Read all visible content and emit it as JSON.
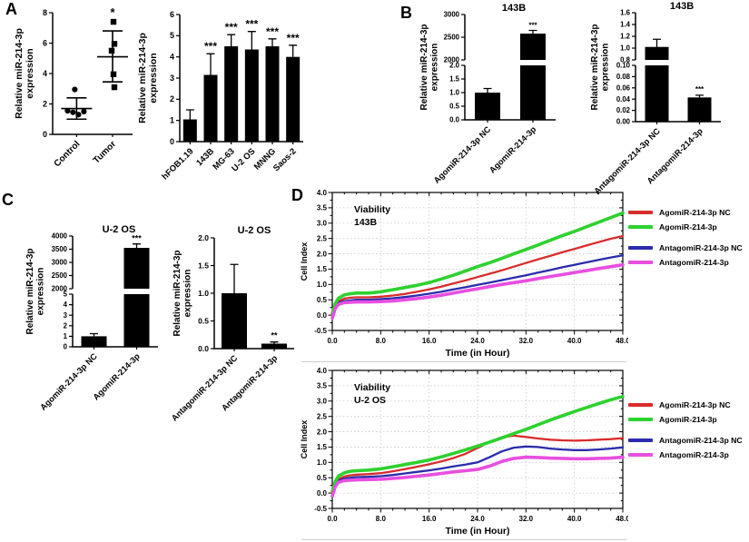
{
  "panels": {
    "A": "A",
    "B": "B",
    "C": "C",
    "D": "D"
  },
  "chart_data": [
    {
      "id": "a-scatter",
      "type": "scatter",
      "ylabel": [
        "Relative miR-214-3p",
        "expression"
      ],
      "ylim": [
        0,
        8
      ],
      "yticks": [
        0,
        2,
        4,
        6,
        8
      ],
      "ytick_labels": [
        "0",
        "2",
        "4",
        "6",
        "8"
      ],
      "groups": [
        {
          "name": "Control",
          "marker": "circle",
          "points": [
            [
              -10,
              1.55
            ],
            [
              -4,
              1.45
            ],
            [
              2,
              1.3
            ],
            [
              8,
              1.5
            ],
            [
              -2,
              2.95
            ]
          ],
          "mean": 1.7,
          "err_low": 1.0,
          "err_high": 2.4,
          "sig": ""
        },
        {
          "name": "Tumor",
          "marker": "square",
          "points": [
            [
              1,
              7.4
            ],
            [
              2,
              5.95
            ],
            [
              -1,
              5.5
            ],
            [
              1,
              3.95
            ],
            [
              2,
              3.1
            ]
          ],
          "mean": 5.1,
          "err_low": 3.45,
          "err_high": 6.8,
          "sig": "*"
        }
      ]
    },
    {
      "id": "a-bars",
      "type": "bar",
      "ylabel": [
        "Relative miR-214-3p",
        "expression"
      ],
      "ylim": [
        0,
        6
      ],
      "yticks": [
        0,
        1,
        2,
        3,
        4,
        5,
        6
      ],
      "ytick_labels": [
        "0",
        "1",
        "2",
        "3",
        "4",
        "5",
        "6"
      ],
      "categories": [
        "hFOB1.19",
        "143B",
        "MG-63",
        "U-2 OS",
        "MNNG",
        "Saos-2"
      ],
      "values": [
        1.05,
        3.15,
        4.5,
        4.35,
        4.5,
        4.0
      ],
      "errors": [
        0.45,
        1.0,
        0.55,
        0.85,
        0.35,
        0.55
      ],
      "sig": [
        "",
        "***",
        "***",
        "***",
        "***",
        "***"
      ]
    },
    {
      "id": "b-agomir",
      "type": "broken-bar",
      "title": "143B",
      "ylabel": [
        "Relative miR-214-3p",
        "expression"
      ],
      "upper": {
        "ylim": [
          2000,
          3000
        ],
        "yticks": [
          2000,
          2500,
          3000
        ],
        "ytick_labels": [
          "2000",
          "2500",
          "3000"
        ]
      },
      "lower": {
        "ylim": [
          0,
          2
        ],
        "yticks": [
          0,
          0.5,
          1,
          1.5,
          2
        ],
        "ytick_labels": [
          "0.0",
          "0.5",
          "1.0",
          "1.5",
          "2.0"
        ]
      },
      "categories": [
        "AgomiR-214-3p NC",
        "AgomiR-214-3p"
      ],
      "values": [
        1.0,
        2580
      ],
      "errors": [
        0.15,
        70
      ],
      "sig": [
        "",
        "***"
      ]
    },
    {
      "id": "b-antagomir",
      "type": "broken-bar",
      "title": "143B",
      "ylabel": [
        "Relative miR-214-3p",
        "expression"
      ],
      "upper": {
        "ylim": [
          0.8,
          1.6
        ],
        "yticks": [
          0.8,
          1.0,
          1.2,
          1.4,
          1.6
        ],
        "ytick_labels": [
          "0.8",
          "1.0",
          "1.2",
          "1.4",
          "1.6"
        ]
      },
      "lower": {
        "ylim": [
          0,
          0.1
        ],
        "yticks": [
          0,
          0.02,
          0.04,
          0.06,
          0.08,
          0.1
        ],
        "ytick_labels": [
          "0.00",
          "0.02",
          "0.04",
          "0.06",
          "0.08",
          "0.10"
        ]
      },
      "categories": [
        "AntagomiR-214-3p NC",
        "AntagomiR-214-3p"
      ],
      "values": [
        1.02,
        0.043
      ],
      "errors": [
        0.13,
        0.004
      ],
      "sig": [
        "",
        "***"
      ]
    },
    {
      "id": "c-agomir",
      "type": "broken-bar",
      "title": "U-2 OS",
      "ylabel": [
        "Relative miR-214-3p",
        "expression"
      ],
      "upper": {
        "ylim": [
          2000,
          4000
        ],
        "yticks": [
          2000,
          2500,
          3000,
          3500,
          4000
        ],
        "ytick_labels": [
          "2000",
          "2500",
          "3000",
          "3500",
          "4000"
        ]
      },
      "lower": {
        "ylim": [
          0,
          5
        ],
        "yticks": [
          0,
          1,
          2,
          3,
          4,
          5
        ],
        "ytick_labels": [
          "0",
          "1",
          "2",
          "3",
          "4",
          "5"
        ]
      },
      "categories": [
        "AgomiR-214-3p NC",
        "AgomiR-214-3p"
      ],
      "values": [
        1.0,
        3550
      ],
      "errors": [
        0.25,
        150
      ],
      "sig": [
        "",
        "***"
      ]
    },
    {
      "id": "c-antagomir",
      "type": "bar",
      "title": "U-2 OS",
      "ylabel": [
        "Relative miR-214-3p",
        "expression"
      ],
      "ylim": [
        0,
        2
      ],
      "yticks": [
        0,
        0.5,
        1,
        1.5,
        2
      ],
      "ytick_labels": [
        "0.0",
        "0.5",
        "1.0",
        "1.5",
        "2.0"
      ],
      "categories": [
        "AntagomiR-214-3p NC",
        "AntagomiR-214-3p"
      ],
      "values": [
        1.0,
        0.09
      ],
      "errors": [
        0.52,
        0.03
      ],
      "sig": [
        "",
        "**"
      ]
    },
    {
      "id": "d-143b",
      "type": "line",
      "annotation": [
        "Viability",
        "143B"
      ],
      "xlabel": "Time (in Hour)",
      "ylabel": "Cell Index",
      "xlim": [
        0,
        48
      ],
      "ylim": [
        -0.5,
        4.0
      ],
      "xticks": [
        0,
        8,
        16,
        24,
        32,
        40,
        48
      ],
      "xtick_labels": [
        "0.0",
        "8.0",
        "16.0",
        "24.0",
        "32.0",
        "40.0",
        "48.0"
      ],
      "yticks": [
        4.0,
        3.5,
        3.0,
        2.5,
        2.0,
        1.5,
        1.0,
        0.5,
        0.0,
        -0.5
      ],
      "ytick_labels": [
        "4.0",
        "3.5",
        "3.0",
        "2.5",
        "2.0",
        "1.5",
        "1.0",
        "0.5",
        "0.0",
        "-0.5"
      ],
      "x": [
        0,
        0.5,
        1,
        2,
        3,
        4,
        6,
        8,
        10,
        12,
        14,
        16,
        18,
        20,
        22,
        24,
        26,
        28,
        30,
        32,
        34,
        36,
        38,
        40,
        42,
        44,
        46,
        48
      ],
      "series": [
        {
          "name": "AgomiR-214-3p NC",
          "color": "#d82c2c",
          "values": [
            0.0,
            0.3,
            0.45,
            0.54,
            0.57,
            0.58,
            0.58,
            0.6,
            0.64,
            0.69,
            0.76,
            0.84,
            0.93,
            1.03,
            1.13,
            1.24,
            1.35,
            1.46,
            1.58,
            1.7,
            1.82,
            1.93,
            2.05,
            2.16,
            2.27,
            2.38,
            2.49,
            2.58
          ]
        },
        {
          "name": "AgomiR-214-3p",
          "color": "#2fd12f",
          "values": [
            0.05,
            0.38,
            0.55,
            0.66,
            0.7,
            0.72,
            0.72,
            0.76,
            0.83,
            0.9,
            0.97,
            1.06,
            1.18,
            1.3,
            1.44,
            1.58,
            1.71,
            1.85,
            2.0,
            2.14,
            2.29,
            2.44,
            2.59,
            2.73,
            2.88,
            3.03,
            3.18,
            3.33
          ]
        },
        {
          "name": "AntagomiR-214-3p NC",
          "color": "#2b2bad",
          "values": [
            -0.05,
            0.25,
            0.4,
            0.46,
            0.48,
            0.5,
            0.5,
            0.52,
            0.55,
            0.59,
            0.64,
            0.7,
            0.76,
            0.84,
            0.91,
            0.99,
            1.06,
            1.14,
            1.22,
            1.3,
            1.39,
            1.47,
            1.56,
            1.64,
            1.72,
            1.8,
            1.88,
            1.95
          ]
        },
        {
          "name": "AntagomiR-214-3p",
          "color": "#e84fe0",
          "values": [
            -0.1,
            0.22,
            0.35,
            0.41,
            0.42,
            0.43,
            0.43,
            0.44,
            0.46,
            0.5,
            0.54,
            0.59,
            0.65,
            0.72,
            0.79,
            0.86,
            0.93,
            1.0,
            1.06,
            1.12,
            1.19,
            1.26,
            1.32,
            1.39,
            1.45,
            1.52,
            1.58,
            1.64
          ]
        }
      ]
    },
    {
      "id": "d-u2os",
      "type": "line",
      "annotation": [
        "Viability",
        "U-2 OS"
      ],
      "xlabel": "Time (in Hour)",
      "ylabel": "Cell Index",
      "xlim": [
        0,
        48
      ],
      "ylim": [
        -0.5,
        4.0
      ],
      "xticks": [
        0,
        8,
        16,
        24,
        32,
        40,
        48
      ],
      "xtick_labels": [
        "0.0",
        "8.0",
        "16.0",
        "24.0",
        "32.0",
        "40.0",
        "48.0"
      ],
      "yticks": [
        4.0,
        3.5,
        3.0,
        2.5,
        2.0,
        1.5,
        1.0,
        0.5,
        0.0,
        -0.5
      ],
      "ytick_labels": [
        "4.0",
        "3.5",
        "3.0",
        "2.5",
        "2.0",
        "1.5",
        "1.0",
        "0.5",
        "0.0",
        "-0.5"
      ],
      "x": [
        0,
        0.5,
        1,
        2,
        3,
        4,
        6,
        8,
        10,
        12,
        14,
        16,
        18,
        20,
        22,
        24,
        26,
        28,
        30,
        32,
        34,
        36,
        38,
        40,
        42,
        44,
        46,
        48
      ],
      "series": [
        {
          "name": "AgomiR-214-3p NC",
          "color": "#d82c2c",
          "values": [
            0.0,
            0.3,
            0.45,
            0.54,
            0.58,
            0.6,
            0.62,
            0.65,
            0.71,
            0.78,
            0.86,
            0.94,
            1.03,
            1.14,
            1.28,
            1.47,
            1.67,
            1.82,
            1.87,
            1.83,
            1.78,
            1.74,
            1.72,
            1.71,
            1.72,
            1.74,
            1.76,
            1.79
          ]
        },
        {
          "name": "AgomiR-214-3p",
          "color": "#2fd12f",
          "values": [
            0.05,
            0.38,
            0.55,
            0.66,
            0.71,
            0.73,
            0.75,
            0.79,
            0.86,
            0.93,
            1.0,
            1.08,
            1.18,
            1.29,
            1.41,
            1.53,
            1.66,
            1.8,
            1.94,
            2.08,
            2.23,
            2.38,
            2.52,
            2.66,
            2.79,
            2.92,
            3.04,
            3.15
          ]
        },
        {
          "name": "AntagomiR-214-3p NC",
          "color": "#2b2bad",
          "values": [
            -0.05,
            0.25,
            0.4,
            0.47,
            0.5,
            0.52,
            0.53,
            0.55,
            0.59,
            0.64,
            0.69,
            0.74,
            0.8,
            0.87,
            0.93,
            1.0,
            1.17,
            1.36,
            1.48,
            1.52,
            1.5,
            1.45,
            1.42,
            1.4,
            1.4,
            1.42,
            1.45,
            1.49
          ]
        },
        {
          "name": "AntagomiR-214-3p",
          "color": "#e84fe0",
          "values": [
            -0.1,
            0.22,
            0.35,
            0.41,
            0.42,
            0.43,
            0.44,
            0.45,
            0.48,
            0.51,
            0.55,
            0.59,
            0.64,
            0.69,
            0.73,
            0.77,
            0.88,
            1.03,
            1.13,
            1.17,
            1.16,
            1.14,
            1.13,
            1.12,
            1.12,
            1.13,
            1.14,
            1.17
          ]
        }
      ]
    }
  ]
}
